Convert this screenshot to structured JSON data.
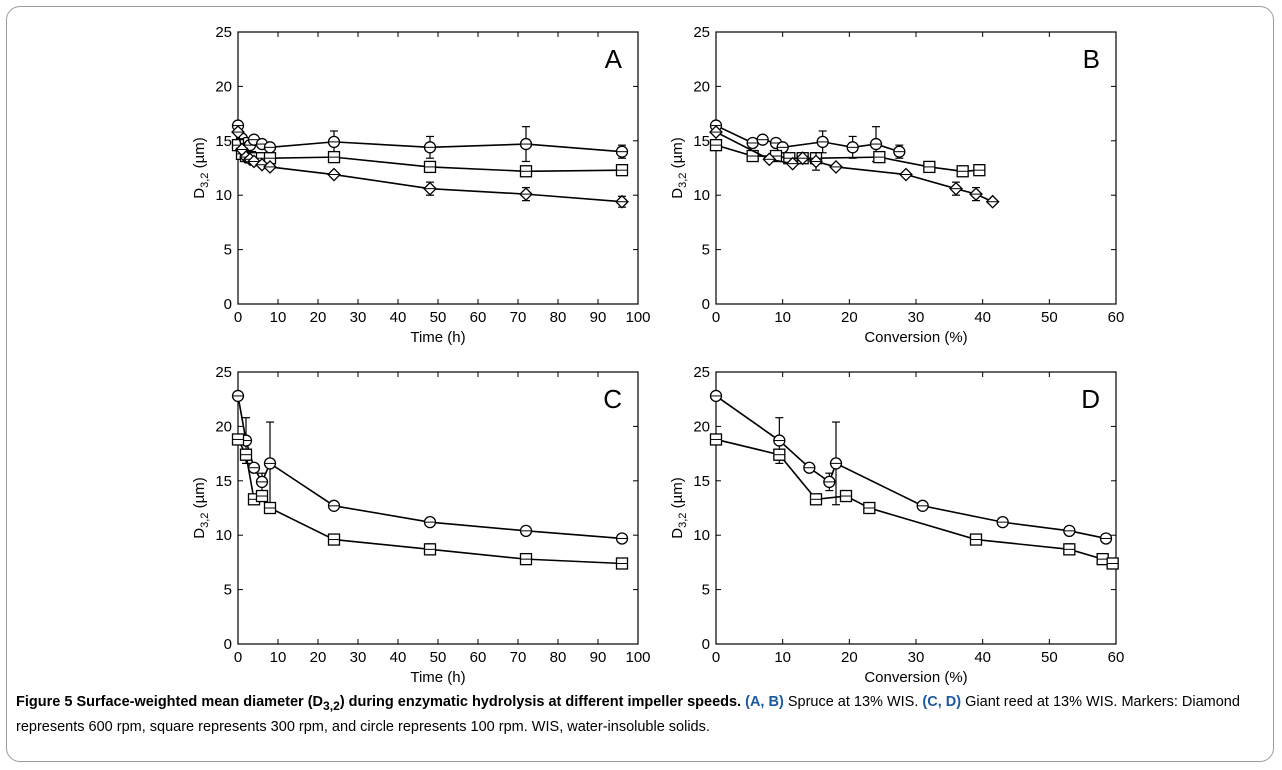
{
  "chart_data": [
    {
      "type": "line",
      "panel_label": "A",
      "xlabel": "Time (h)",
      "ylabel": "D3,2 (µm)",
      "xlim": [
        0,
        100
      ],
      "ylim": [
        0,
        25
      ],
      "xticks": [
        0,
        10,
        20,
        30,
        40,
        50,
        60,
        70,
        80,
        90,
        100
      ],
      "yticks": [
        0,
        5,
        10,
        15,
        20,
        25
      ],
      "series": [
        {
          "marker": "circle",
          "points": [
            {
              "x": 0,
              "y": 16.4
            },
            {
              "x": 1,
              "y": 15.2
            },
            {
              "x": 2,
              "y": 14.8
            },
            {
              "x": 3,
              "y": 14.6
            },
            {
              "x": 4,
              "y": 15.1
            },
            {
              "x": 6,
              "y": 14.7
            },
            {
              "x": 8,
              "y": 14.4
            },
            {
              "x": 24,
              "y": 14.9,
              "err": 1.0
            },
            {
              "x": 48,
              "y": 14.4,
              "err": 1.0
            },
            {
              "x": 72,
              "y": 14.7,
              "err": 1.6
            },
            {
              "x": 96,
              "y": 14.0,
              "err": 0.6
            }
          ]
        },
        {
          "marker": "square",
          "points": [
            {
              "x": 0,
              "y": 14.6
            },
            {
              "x": 1,
              "y": 13.8
            },
            {
              "x": 2,
              "y": 13.6
            },
            {
              "x": 3,
              "y": 13.5
            },
            {
              "x": 4,
              "y": 13.4
            },
            {
              "x": 6,
              "y": 13.4
            },
            {
              "x": 8,
              "y": 13.4
            },
            {
              "x": 24,
              "y": 13.5
            },
            {
              "x": 48,
              "y": 12.6
            },
            {
              "x": 72,
              "y": 12.2
            },
            {
              "x": 96,
              "y": 12.3
            }
          ]
        },
        {
          "marker": "diamond",
          "points": [
            {
              "x": 0,
              "y": 15.8
            },
            {
              "x": 1,
              "y": 14.2
            },
            {
              "x": 2,
              "y": 13.5
            },
            {
              "x": 3,
              "y": 13.3
            },
            {
              "x": 4,
              "y": 13.1
            },
            {
              "x": 6,
              "y": 12.8
            },
            {
              "x": 8,
              "y": 12.6
            },
            {
              "x": 24,
              "y": 11.9
            },
            {
              "x": 48,
              "y": 10.6,
              "err": 0.6
            },
            {
              "x": 72,
              "y": 10.1,
              "err": 0.6
            },
            {
              "x": 96,
              "y": 9.4,
              "err": 0.5
            }
          ]
        }
      ]
    },
    {
      "type": "line",
      "panel_label": "B",
      "xlabel": "Conversion (%)",
      "ylabel": "D3,2 (µm)",
      "xlim": [
        0,
        60
      ],
      "ylim": [
        0,
        25
      ],
      "xticks": [
        0,
        10,
        20,
        30,
        40,
        50,
        60
      ],
      "yticks": [
        0,
        5,
        10,
        15,
        20,
        25
      ],
      "series": [
        {
          "marker": "circle",
          "points": [
            {
              "x": 0,
              "y": 16.4
            },
            {
              "x": 5.5,
              "y": 14.8
            },
            {
              "x": 7,
              "y": 15.1
            },
            {
              "x": 9,
              "y": 14.8
            },
            {
              "x": 10,
              "y": 14.4
            },
            {
              "x": 16,
              "y": 14.9,
              "err": 1.0
            },
            {
              "x": 20.5,
              "y": 14.4,
              "err": 1.0
            },
            {
              "x": 24,
              "y": 14.7,
              "err": 1.6
            },
            {
              "x": 27.5,
              "y": 14.0,
              "err": 0.6
            }
          ]
        },
        {
          "marker": "square",
          "points": [
            {
              "x": 0,
              "y": 14.6
            },
            {
              "x": 5.5,
              "y": 13.6
            },
            {
              "x": 9,
              "y": 13.6
            },
            {
              "x": 11,
              "y": 13.4
            },
            {
              "x": 13,
              "y": 13.4
            },
            {
              "x": 15,
              "y": 13.4
            },
            {
              "x": 24.5,
              "y": 13.5
            },
            {
              "x": 32,
              "y": 12.6
            },
            {
              "x": 37,
              "y": 12.2
            },
            {
              "x": 39.5,
              "y": 12.3
            }
          ]
        },
        {
          "marker": "diamond",
          "points": [
            {
              "x": 0,
              "y": 15.8
            },
            {
              "x": 8,
              "y": 13.3
            },
            {
              "x": 11.5,
              "y": 12.9
            },
            {
              "x": 13,
              "y": 13.4
            },
            {
              "x": 15,
              "y": 13.1,
              "err": 0.8
            },
            {
              "x": 18,
              "y": 12.6
            },
            {
              "x": 28.5,
              "y": 11.9
            },
            {
              "x": 36,
              "y": 10.6,
              "err": 0.6
            },
            {
              "x": 39,
              "y": 10.1,
              "err": 0.6
            },
            {
              "x": 41.5,
              "y": 9.4
            }
          ]
        }
      ]
    },
    {
      "type": "line",
      "panel_label": "C",
      "xlabel": "Time (h)",
      "ylabel": "D3,2 (µm)",
      "xlim": [
        0,
        100
      ],
      "ylim": [
        0,
        25
      ],
      "xticks": [
        0,
        10,
        20,
        30,
        40,
        50,
        60,
        70,
        80,
        90,
        100
      ],
      "yticks": [
        0,
        5,
        10,
        15,
        20,
        25
      ],
      "series": [
        {
          "marker": "circle",
          "points": [
            {
              "x": 0,
              "y": 22.8
            },
            {
              "x": 2,
              "y": 18.7,
              "err": 2.1
            },
            {
              "x": 4,
              "y": 16.2
            },
            {
              "x": 6,
              "y": 14.9,
              "err": 0.8
            },
            {
              "x": 8,
              "y": 16.6,
              "err": 3.8
            },
            {
              "x": 24,
              "y": 12.7
            },
            {
              "x": 48,
              "y": 11.2
            },
            {
              "x": 72,
              "y": 10.4
            },
            {
              "x": 96,
              "y": 9.7
            }
          ]
        },
        {
          "marker": "square",
          "points": [
            {
              "x": 0,
              "y": 18.8
            },
            {
              "x": 2,
              "y": 17.4,
              "err": 0.5
            },
            {
              "x": 4,
              "y": 13.3
            },
            {
              "x": 6,
              "y": 13.6,
              "err": 0.5
            },
            {
              "x": 8,
              "y": 12.5
            },
            {
              "x": 24,
              "y": 9.6
            },
            {
              "x": 48,
              "y": 8.7,
              "err": 0.5
            },
            {
              "x": 72,
              "y": 7.8
            },
            {
              "x": 96,
              "y": 7.4
            }
          ]
        }
      ]
    },
    {
      "type": "line",
      "panel_label": "D",
      "xlabel": "Conversion (%)",
      "ylabel": "D3,2 (µm)",
      "xlim": [
        0,
        60
      ],
      "ylim": [
        0,
        25
      ],
      "xticks": [
        0,
        10,
        20,
        30,
        40,
        50,
        60
      ],
      "yticks": [
        0,
        5,
        10,
        15,
        20,
        25
      ],
      "series": [
        {
          "marker": "circle",
          "points": [
            {
              "x": 0,
              "y": 22.8
            },
            {
              "x": 9.5,
              "y": 18.7,
              "err": 2.1
            },
            {
              "x": 14,
              "y": 16.2
            },
            {
              "x": 17,
              "y": 14.9,
              "err": 0.8
            },
            {
              "x": 18,
              "y": 16.6,
              "err": 3.8
            },
            {
              "x": 31,
              "y": 12.7
            },
            {
              "x": 43,
              "y": 11.2
            },
            {
              "x": 53,
              "y": 10.4
            },
            {
              "x": 58.5,
              "y": 9.7
            }
          ]
        },
        {
          "marker": "square",
          "points": [
            {
              "x": 0,
              "y": 18.8
            },
            {
              "x": 9.5,
              "y": 17.4,
              "err": 0.5
            },
            {
              "x": 15,
              "y": 13.3
            },
            {
              "x": 19.5,
              "y": 13.6
            },
            {
              "x": 23,
              "y": 12.5
            },
            {
              "x": 39,
              "y": 9.6
            },
            {
              "x": 53,
              "y": 8.7,
              "err": 0.5
            },
            {
              "x": 58,
              "y": 7.8
            },
            {
              "x": 59.5,
              "y": 7.4
            }
          ]
        }
      ]
    }
  ],
  "caption": {
    "figure_label": "Figure 5",
    "title_pre": "Surface-weighted mean diameter (D",
    "title_sub": "3,2",
    "title_post": ") during enzymatic hydrolysis at different impeller speeds.",
    "ab_label": "(A, B)",
    "ab_text": "Spruce at 13% WIS.",
    "cd_label": "(C, D)",
    "cd_text": "Giant reed at 13% WIS. Markers: Diamond represents 600 rpm, square represents 300 rpm, and circle represents 100 rpm. WIS, water-insoluble solids."
  },
  "colors": {
    "frame": "#9a9a9a",
    "caption_accent": "#1a5aa0",
    "ink": "#000000"
  }
}
